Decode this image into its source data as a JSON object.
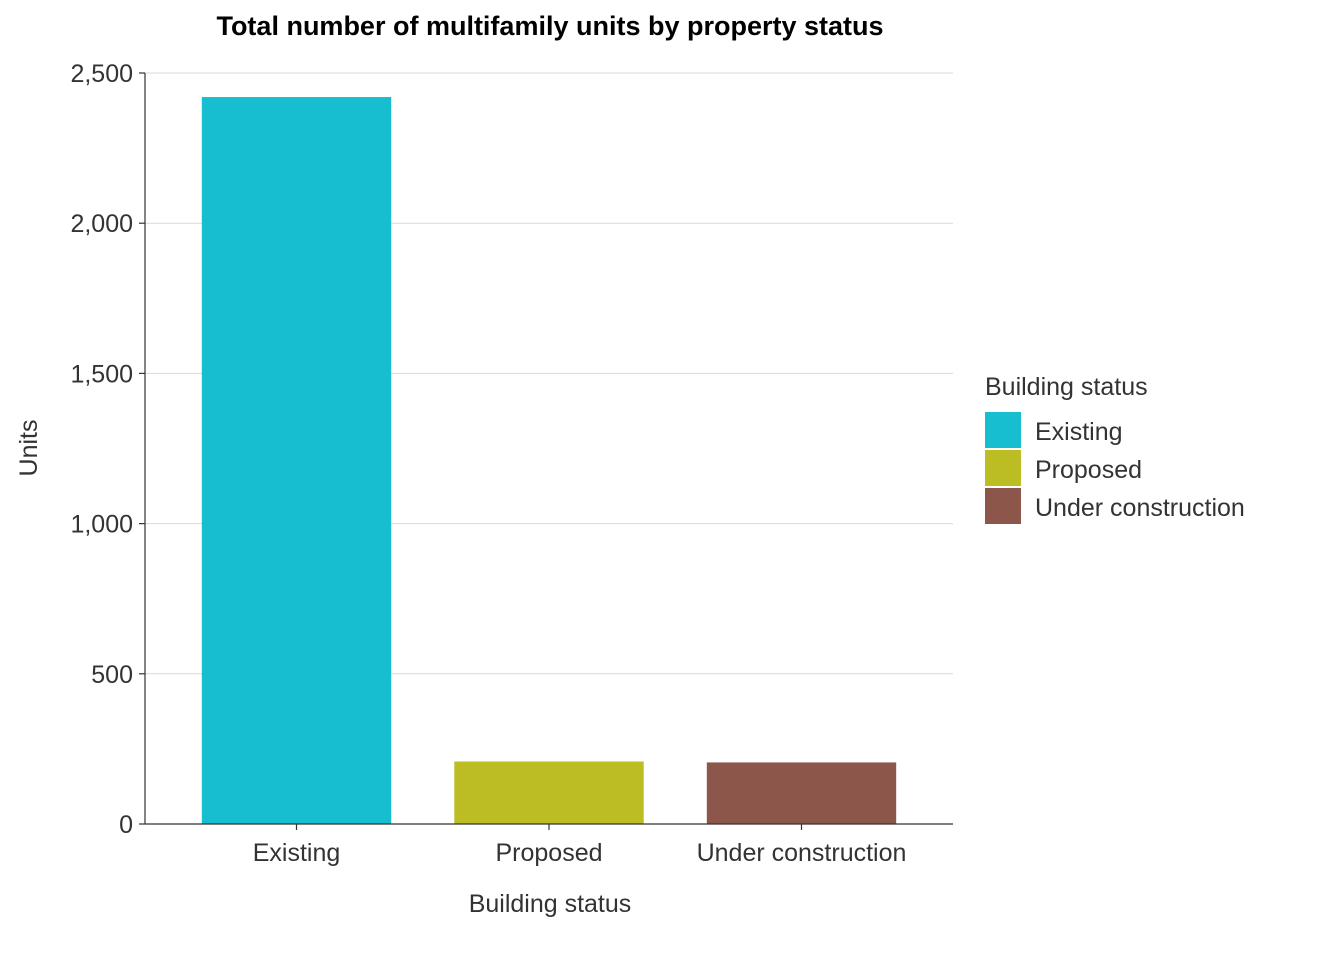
{
  "chart_data": {
    "type": "bar",
    "title": "Total number of multifamily units by property status",
    "xlabel": "Building status",
    "ylabel": "Units",
    "categories": [
      "Existing",
      "Proposed",
      "Under construction"
    ],
    "values": [
      2420,
      208,
      205
    ],
    "colors": [
      "#17becf",
      "#bcbd22",
      "#8c564b"
    ],
    "ylim": [
      0,
      2500
    ],
    "yticks": [
      0,
      500,
      1000,
      1500,
      2000,
      2500
    ],
    "ytick_labels": [
      "0",
      "500",
      "1,000",
      "1,500",
      "2,000",
      "2,500"
    ],
    "grid": "horizontal",
    "legend": {
      "title": "Building status",
      "placement": "right",
      "entries": [
        "Existing",
        "Proposed",
        "Under construction"
      ]
    }
  }
}
